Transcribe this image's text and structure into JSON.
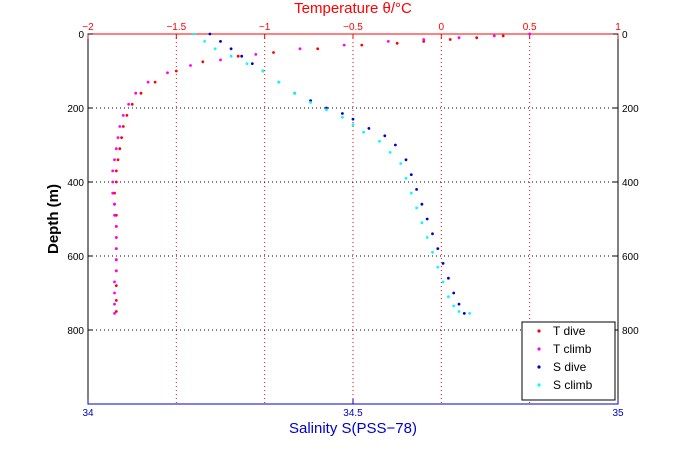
{
  "chart_data": {
    "type": "scatter",
    "top_axis": {
      "label": "Temperature θ/°C",
      "range": [
        -2,
        1
      ],
      "ticks": [
        "−2",
        "−1.5",
        "−1",
        "−0.5",
        "0",
        "0.5",
        "1"
      ],
      "tick_values": [
        -2,
        -1.5,
        -1,
        -0.5,
        0,
        0.5,
        1
      ],
      "color": "#ff0000"
    },
    "bottom_axis": {
      "label": "Salinity S(PSS−78)",
      "range": [
        34,
        35
      ],
      "ticks": [
        "34",
        "34.5",
        "35"
      ],
      "tick_values": [
        34,
        34.5,
        35
      ],
      "color": "#0000cc"
    },
    "y_axis": {
      "label": "Depth (m)",
      "range": [
        0,
        1000
      ],
      "reversed": true,
      "ticks": [
        "0",
        "200",
        "400",
        "600",
        "800"
      ],
      "tick_values": [
        0,
        200,
        400,
        600,
        800
      ],
      "color": "#000000"
    },
    "grid": true,
    "grid_color_vertical": "#ff0000",
    "grid_color_horizontal": "#000000",
    "legend": {
      "placement": "bottom-right",
      "entries": [
        "T dive",
        "T climb",
        "S dive",
        "S climb"
      ]
    },
    "series": [
      {
        "name": "T dive",
        "color": "#ff0000",
        "x": [
          0.5,
          0.35,
          0.2,
          0.05,
          -0.1,
          -0.25,
          -0.45,
          -0.7,
          -0.95,
          -1.15,
          -1.35,
          -1.5,
          -1.62,
          -1.7,
          -1.75,
          -1.78,
          -1.8,
          -1.81,
          -1.82,
          -1.83,
          -1.84,
          -1.84,
          -1.85,
          -1.85,
          -1.84,
          -1.84,
          -1.84,
          -1.84,
          -1.84,
          -1.84,
          -1.84,
          -1.84,
          -1.84
        ],
        "y": [
          0,
          5,
          10,
          15,
          20,
          25,
          30,
          40,
          50,
          60,
          75,
          100,
          130,
          160,
          190,
          220,
          250,
          280,
          310,
          340,
          370,
          400,
          430,
          460,
          490,
          520,
          550,
          580,
          610,
          640,
          680,
          720,
          750
        ]
      },
      {
        "name": "T climb",
        "color": "#ff00ff",
        "x": [
          0.5,
          0.3,
          0.1,
          -0.1,
          -0.3,
          -0.55,
          -0.8,
          -1.05,
          -1.25,
          -1.42,
          -1.55,
          -1.66,
          -1.73,
          -1.77,
          -1.8,
          -1.82,
          -1.83,
          -1.84,
          -1.85,
          -1.86,
          -1.86,
          -1.86,
          -1.85,
          -1.85,
          -1.84,
          -1.84,
          -1.84,
          -1.84,
          -1.84,
          -1.85,
          -1.85,
          -1.85,
          -1.85
        ],
        "y": [
          0,
          5,
          10,
          15,
          20,
          30,
          40,
          55,
          70,
          85,
          105,
          130,
          160,
          190,
          220,
          250,
          280,
          310,
          340,
          370,
          400,
          430,
          460,
          490,
          520,
          550,
          580,
          610,
          640,
          670,
          700,
          730,
          755
        ]
      },
      {
        "name": "S dive",
        "color": "#0000cc",
        "x": [
          34.23,
          34.25,
          34.27,
          34.29,
          34.31,
          34.33,
          34.36,
          34.39,
          34.42,
          34.45,
          34.48,
          34.5,
          34.53,
          34.56,
          34.58,
          34.6,
          34.61,
          34.62,
          34.63,
          34.64,
          34.65,
          34.66,
          34.67,
          34.68,
          34.69,
          34.7,
          34.71
        ],
        "y": [
          0,
          20,
          40,
          60,
          80,
          100,
          130,
          160,
          180,
          200,
          215,
          230,
          255,
          275,
          300,
          340,
          380,
          420,
          460,
          500,
          540,
          580,
          620,
          660,
          700,
          730,
          755
        ]
      },
      {
        "name": "S climb",
        "color": "#00ffff",
        "x": [
          34.2,
          34.22,
          34.24,
          34.27,
          34.3,
          34.33,
          34.36,
          34.39,
          34.42,
          34.45,
          34.48,
          34.5,
          34.52,
          34.55,
          34.57,
          34.59,
          34.6,
          34.61,
          34.62,
          34.63,
          34.64,
          34.65,
          34.66,
          34.67,
          34.68,
          34.69,
          34.7,
          34.72
        ],
        "y": [
          0,
          20,
          40,
          60,
          80,
          100,
          130,
          160,
          185,
          205,
          225,
          245,
          265,
          290,
          320,
          350,
          390,
          430,
          470,
          510,
          550,
          590,
          630,
          670,
          710,
          735,
          750,
          755
        ]
      }
    ]
  }
}
